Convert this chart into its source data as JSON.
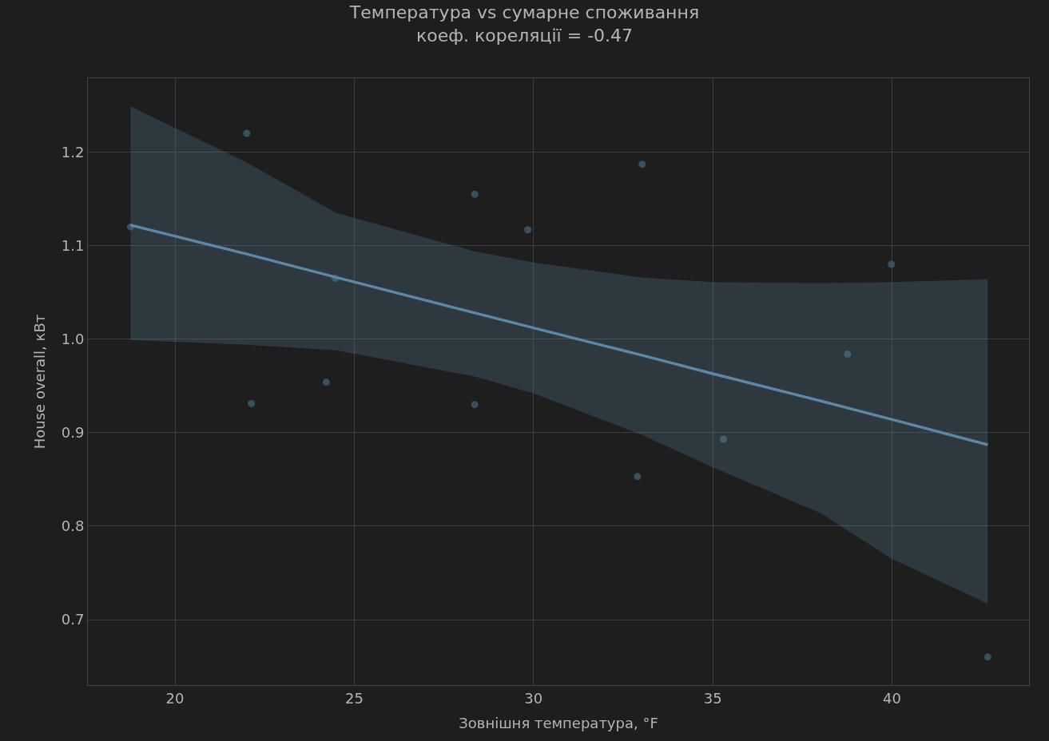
{
  "chart_data": {
    "type": "scatter",
    "title": "Температура vs сумарне споживання",
    "subtitle": "коеф. кореляції = -0.47",
    "xlabel": "Зовнішня температура, °F",
    "ylabel": "House overall, кВт",
    "series": [
      {
        "marker": "circle",
        "color": "#3d5566",
        "x": [
          18.76,
          22.0,
          22.13,
          24.22,
          24.47,
          28.36,
          28.36,
          29.84,
          33.03,
          32.9,
          35.3,
          38.76,
          39.98,
          42.67
        ],
        "values": [
          1.12,
          1.22,
          0.931,
          0.954,
          1.065,
          1.155,
          0.93,
          1.117,
          1.187,
          0.853,
          0.893,
          0.984,
          1.08,
          0.66
        ]
      },
      {
        "type": "line",
        "color": "#5b88a5",
        "x": [
          18.76,
          22.0,
          24.5,
          28.36,
          30,
          33,
          35,
          38,
          40,
          42.67
        ],
        "values": [
          1.122,
          1.091,
          1.066,
          1.028,
          1.012,
          0.983,
          0.963,
          0.934,
          0.914,
          0.887
        ],
        "lower": [
          0.999,
          0.994,
          0.988,
          0.96,
          0.942,
          0.898,
          0.863,
          0.814,
          0.765,
          0.717
        ],
        "upper": [
          1.249,
          1.189,
          1.135,
          1.094,
          1.082,
          1.066,
          1.061,
          1.06,
          1.061,
          1.064
        ]
      }
    ],
    "xlim": [
      17.57,
      43.82
    ],
    "xticks": [
      20,
      25,
      30,
      35,
      40
    ],
    "ylim": [
      0.63,
      1.279
    ],
    "yticks": [
      0.7,
      0.8,
      0.9,
      {
        "value": 1.0,
        "label": "1.0"
      },
      1.1,
      1.2
    ],
    "grid": true
  }
}
